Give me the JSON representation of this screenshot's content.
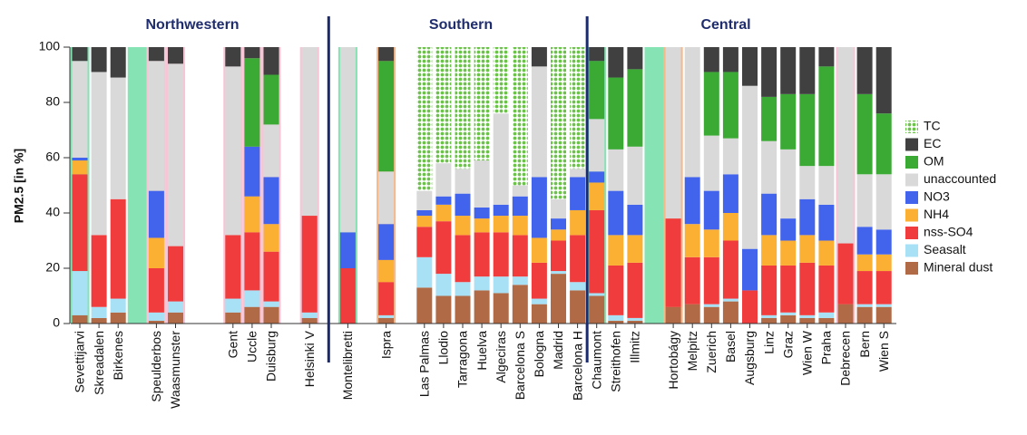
{
  "chart_data": {
    "type": "stacked_bar",
    "y_label": "PM2.5 [in %]",
    "groups": [
      {
        "name": "Northwestern"
      },
      {
        "name": "Southern"
      },
      {
        "name": "Central"
      }
    ],
    "categories": [
      "Sevettijarvi",
      "Skreadalen",
      "Birkenes",
      null,
      "Speulderbos",
      "Waasmunster",
      null,
      null,
      "Gent",
      "Uccle",
      "Duisburg",
      null,
      "Helsinki V",
      null,
      "Montelibretti",
      null,
      "Ispra",
      null,
      "Las Palmas",
      "Llodio",
      "Tarragona",
      "Huelva",
      "Algeciras",
      "Barcelona S",
      "Bologna",
      "Madrid",
      "Barcelona H",
      "Chaumont",
      "Streithofen",
      "Illmitz",
      null,
      "Hortobágy",
      "Melpitz",
      "Zuerich",
      "Basel",
      "Augsburg",
      "Linz",
      "Graz",
      "Wien W",
      "Praha",
      "Debrecen",
      "Bern",
      "Wien S"
    ],
    "backgrounds": [
      "#86e3b4",
      null,
      null,
      "#86e3b4",
      "#f7c6d6",
      "#f7c6d6",
      null,
      null,
      "#f7c6d6",
      "#f7c6d6",
      "#f7c6d6",
      null,
      "#f7c6d6",
      null,
      "#86e3b4",
      null,
      "#f7b98a",
      null,
      null,
      null,
      null,
      null,
      null,
      null,
      null,
      null,
      null,
      "#86e3b4",
      null,
      null,
      "#86e3b4",
      "#f7b98a",
      null,
      null,
      null,
      null,
      null,
      null,
      null,
      null,
      "#f7c6d6",
      null,
      null
    ],
    "series": [
      {
        "name": "TC",
        "color": "#6cc24a",
        "pattern": "dots",
        "values": [
          0,
          0,
          0,
          null,
          0,
          0,
          null,
          null,
          0,
          0,
          0,
          null,
          0,
          null,
          0,
          null,
          0,
          null,
          52,
          42,
          44,
          41,
          24,
          50,
          0,
          55,
          44,
          0,
          0,
          0,
          null,
          0,
          0,
          0,
          0,
          0,
          0,
          0,
          0,
          0,
          0,
          0,
          0
        ]
      },
      {
        "name": "EC",
        "color": "#404040",
        "values": [
          5,
          9,
          11,
          null,
          5,
          6,
          null,
          null,
          7,
          4,
          10,
          null,
          0,
          null,
          0,
          null,
          5,
          null,
          0,
          0,
          0,
          0,
          0,
          0,
          7,
          0,
          0,
          5,
          11,
          8,
          null,
          0,
          0,
          9,
          9,
          14,
          18,
          17,
          17,
          7,
          0,
          17,
          24
        ]
      },
      {
        "name": "OM",
        "color": "#3aaa35",
        "values": [
          0,
          0,
          0,
          null,
          0,
          0,
          null,
          null,
          0,
          32,
          18,
          null,
          0,
          null,
          0,
          null,
          40,
          null,
          0,
          0,
          0,
          0,
          0,
          0,
          0,
          0,
          0,
          21,
          26,
          28,
          null,
          0,
          0,
          23,
          24,
          0,
          16,
          20,
          26,
          36,
          0,
          29,
          22
        ]
      },
      {
        "name": "unaccounted",
        "color": "#d9d9d9",
        "values": [
          35,
          59,
          44,
          null,
          47,
          66,
          null,
          null,
          61,
          0,
          19,
          null,
          61,
          null,
          67,
          null,
          19,
          null,
          7,
          12,
          9,
          17,
          33,
          4,
          40,
          7,
          3,
          19,
          15,
          21,
          null,
          62,
          47,
          20,
          13,
          59,
          19,
          25,
          12,
          14,
          71,
          19,
          20
        ]
      },
      {
        "name": "NO3",
        "color": "#4263eb",
        "values": [
          1,
          0,
          0,
          null,
          17,
          0,
          null,
          null,
          0,
          18,
          17,
          null,
          0,
          null,
          13,
          null,
          13,
          null,
          2,
          3,
          8,
          4,
          4,
          7,
          22,
          4,
          12,
          4,
          16,
          11,
          null,
          0,
          17,
          14,
          14,
          15,
          15,
          8,
          13,
          13,
          0,
          10,
          9
        ]
      },
      {
        "name": "NH4",
        "color": "#fbb034",
        "values": [
          5,
          0,
          0,
          null,
          11,
          0,
          null,
          null,
          0,
          13,
          10,
          null,
          0,
          null,
          0,
          null,
          8,
          null,
          4,
          6,
          7,
          5,
          6,
          7,
          9,
          4,
          9,
          10,
          11,
          10,
          null,
          0,
          12,
          10,
          10,
          0,
          11,
          9,
          10,
          9,
          0,
          6,
          6
        ]
      },
      {
        "name": "nss-SO4",
        "color": "#f03c3c",
        "values": [
          35,
          26,
          36,
          null,
          16,
          20,
          null,
          null,
          23,
          21,
          18,
          null,
          35,
          null,
          20,
          null,
          12,
          null,
          11,
          19,
          17,
          16,
          16,
          15,
          13,
          11,
          17,
          30,
          18,
          20,
          null,
          32,
          17,
          17,
          21,
          12,
          18,
          17,
          19,
          17,
          22,
          12,
          12
        ]
      },
      {
        "name": "Seasalt",
        "color": "#a8e0f5",
        "values": [
          16,
          4,
          5,
          null,
          3,
          4,
          null,
          null,
          5,
          6,
          2,
          null,
          2,
          null,
          0,
          null,
          1,
          null,
          11,
          8,
          5,
          5,
          6,
          3,
          2,
          1,
          3,
          1,
          2,
          1,
          null,
          0,
          0,
          1,
          1,
          0,
          1,
          1,
          1,
          2,
          0,
          1,
          1
        ]
      },
      {
        "name": "Mineral dust",
        "color": "#b06a45",
        "values": [
          3,
          2,
          4,
          null,
          1,
          4,
          null,
          null,
          4,
          6,
          6,
          null,
          2,
          null,
          0,
          null,
          2,
          null,
          13,
          10,
          10,
          12,
          11,
          14,
          7,
          18,
          12,
          10,
          1,
          1,
          null,
          6,
          7,
          6,
          8,
          0,
          2,
          3,
          2,
          2,
          7,
          6,
          6
        ]
      }
    ],
    "ylim": [
      0,
      100
    ],
    "yticks": [
      0,
      20,
      40,
      60,
      80,
      100
    ],
    "legend": "right"
  }
}
